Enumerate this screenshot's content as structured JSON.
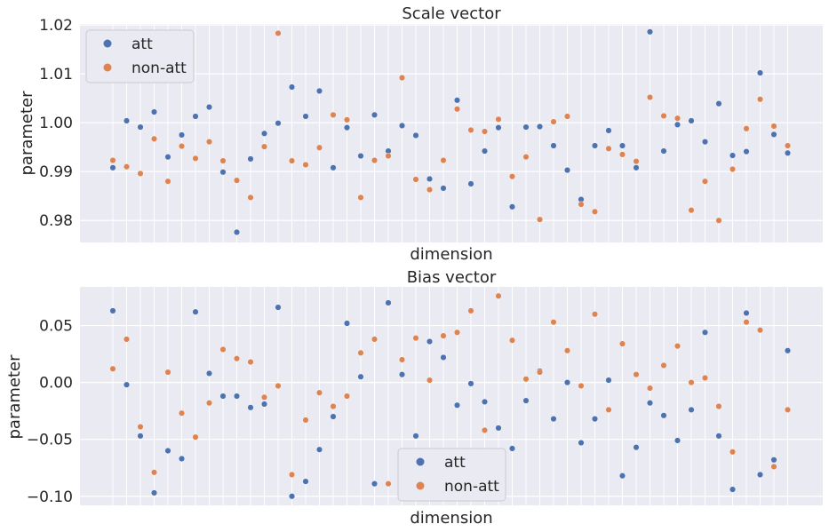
{
  "colors": {
    "att": "#4c72b0",
    "non_att": "#dd8452",
    "axes_bg": "#eaeaf2",
    "grid": "#ffffff"
  },
  "chart_data": [
    {
      "type": "scatter",
      "title": "Scale vector",
      "xlabel": "dimension",
      "ylabel": "parameter",
      "ylim": [
        0.9755,
        1.0202
      ],
      "yticks": [
        0.98,
        0.99,
        1.0,
        1.01,
        1.02
      ],
      "ytick_labels": [
        "0.98",
        "0.99",
        "1.00",
        "1.01",
        "1.02"
      ],
      "grid": true,
      "legend": {
        "position": "upper-left",
        "entries": [
          "att",
          "non-att"
        ]
      },
      "x": [
        0,
        1,
        2,
        3,
        4,
        5,
        6,
        7,
        8,
        9,
        10,
        11,
        12,
        13,
        14,
        15,
        16,
        17,
        18,
        19,
        20,
        21,
        22,
        23,
        24,
        25,
        26,
        27,
        28,
        29,
        30,
        31,
        32,
        33,
        34,
        35,
        36,
        37,
        38,
        39,
        40,
        41,
        42,
        43,
        44,
        45,
        46,
        47,
        48,
        49
      ],
      "series": [
        {
          "name": "att",
          "values": [
            0.9908,
            1.0004,
            0.9991,
            1.0022,
            0.993,
            0.9975,
            1.0013,
            1.0032,
            0.9899,
            0.9776,
            0.9926,
            0.9978,
            0.9999,
            1.0073,
            1.0013,
            1.0065,
            0.9908,
            0.999,
            0.9932,
            1.0016,
            0.9942,
            0.9994,
            0.9974,
            0.9885,
            0.9866,
            1.0046,
            0.9875,
            0.9942,
            0.999,
            0.9828,
            0.9991,
            0.9992,
            0.9953,
            0.9903,
            0.9843,
            0.9953,
            0.9984,
            0.9953,
            0.9908,
            1.0186,
            0.9942,
            0.9996,
            1.0004,
            0.9961,
            1.0039,
            0.9933,
            0.9941,
            1.0102,
            0.9976,
            0.9938
          ]
        },
        {
          "name": "non-att",
          "values": [
            0.9923,
            0.991,
            0.9896,
            0.9967,
            0.988,
            0.9952,
            0.9927,
            0.9961,
            0.9922,
            0.9882,
            0.9847,
            0.9951,
            1.0183,
            0.9922,
            0.9914,
            0.9949,
            1.0016,
            1.0006,
            0.9847,
            0.9923,
            0.9932,
            1.0092,
            0.9884,
            0.9863,
            0.9923,
            1.0028,
            0.9985,
            0.9982,
            1.0007,
            0.989,
            0.993,
            0.9802,
            1.0002,
            1.0013,
            0.9833,
            0.9818,
            0.9947,
            0.9935,
            0.9921,
            1.0052,
            1.0014,
            1.0009,
            0.9821,
            0.988,
            0.98,
            0.9905,
            0.9988,
            1.0048,
            0.9993,
            0.9953
          ]
        }
      ]
    },
    {
      "type": "scatter",
      "title": "Bias vector",
      "xlabel": "dimension",
      "ylabel": "parameter",
      "ylim": [
        -0.108,
        0.084
      ],
      "yticks": [
        -0.1,
        -0.05,
        0.0,
        0.05
      ],
      "ytick_labels": [
        "−0.10",
        "−0.05",
        "0.00",
        "0.05"
      ],
      "grid": true,
      "legend": {
        "position": "lower-center",
        "entries": [
          "att",
          "non-att"
        ]
      },
      "x": [
        0,
        1,
        2,
        3,
        4,
        5,
        6,
        7,
        8,
        9,
        10,
        11,
        12,
        13,
        14,
        15,
        16,
        17,
        18,
        19,
        20,
        21,
        22,
        23,
        24,
        25,
        26,
        27,
        28,
        29,
        30,
        31,
        32,
        33,
        34,
        35,
        36,
        37,
        38,
        39,
        40,
        41,
        42,
        43,
        44,
        45,
        46,
        47,
        48,
        49
      ],
      "series": [
        {
          "name": "att",
          "values": [
            0.063,
            -0.002,
            -0.047,
            -0.097,
            -0.06,
            -0.067,
            0.062,
            0.008,
            -0.012,
            -0.012,
            -0.022,
            -0.019,
            0.066,
            -0.1,
            -0.087,
            -0.059,
            -0.03,
            0.052,
            0.005,
            -0.089,
            0.07,
            0.007,
            -0.047,
            0.036,
            0.022,
            -0.02,
            -0.001,
            -0.017,
            -0.04,
            -0.058,
            -0.016,
            0.01,
            -0.032,
            0.0,
            -0.053,
            -0.032,
            0.002,
            -0.082,
            -0.057,
            -0.018,
            -0.029,
            -0.051,
            -0.024,
            0.044,
            -0.047,
            -0.094,
            0.061,
            -0.081,
            -0.068,
            0.028
          ]
        },
        {
          "name": "non-att",
          "values": [
            0.012,
            0.038,
            -0.039,
            -0.079,
            0.009,
            -0.027,
            -0.048,
            -0.018,
            0.029,
            0.021,
            0.018,
            -0.013,
            -0.003,
            -0.081,
            -0.033,
            -0.009,
            -0.021,
            -0.012,
            0.026,
            0.038,
            -0.089,
            0.02,
            0.039,
            0.002,
            0.041,
            0.044,
            0.063,
            -0.042,
            0.076,
            0.037,
            0.003,
            0.009,
            0.053,
            0.028,
            -0.003,
            0.06,
            -0.024,
            0.034,
            0.007,
            -0.005,
            0.015,
            0.032,
            0.0,
            0.004,
            -0.021,
            -0.061,
            0.053,
            0.046,
            -0.074,
            -0.024
          ]
        }
      ]
    }
  ]
}
